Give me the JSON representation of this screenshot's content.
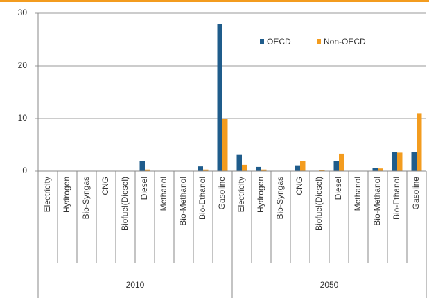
{
  "chart_data": {
    "type": "bar",
    "category_groups": [
      "2010",
      "2050"
    ],
    "categories": [
      "Electricity",
      "Hydrogen",
      "Bio-Syngas",
      "CNG",
      "Biofuel(Diesel)",
      "Diesel",
      "Methanol",
      "Bio-Methanol",
      "Bio-Ethanol",
      "Gasoline",
      "Electricity",
      "Hydrogen",
      "Bio-Syngas",
      "CNG",
      "Biofuel(Diesel)",
      "Diesel",
      "Methanol",
      "Bio-Methanol",
      "Bio-Ethanol",
      "Gasoline"
    ],
    "series": [
      {
        "name": "OECD",
        "color": "#1f5c8b",
        "values": [
          0,
          0,
          0,
          0,
          0,
          1.9,
          0,
          0,
          0.9,
          28,
          3.2,
          0.8,
          0,
          1.1,
          0,
          1.9,
          0,
          0.6,
          3.6,
          3.6
        ]
      },
      {
        "name": "Non-OECD",
        "color": "#f39c1f",
        "values": [
          0,
          0,
          0,
          0,
          0,
          0.3,
          0,
          0,
          0.3,
          10,
          1.2,
          0.3,
          0,
          1.9,
          0.2,
          3.3,
          0,
          0.5,
          3.5,
          11
        ]
      }
    ],
    "ylim": [
      0,
      30
    ],
    "yticks": [
      0,
      10,
      20,
      30
    ],
    "grid": true
  }
}
